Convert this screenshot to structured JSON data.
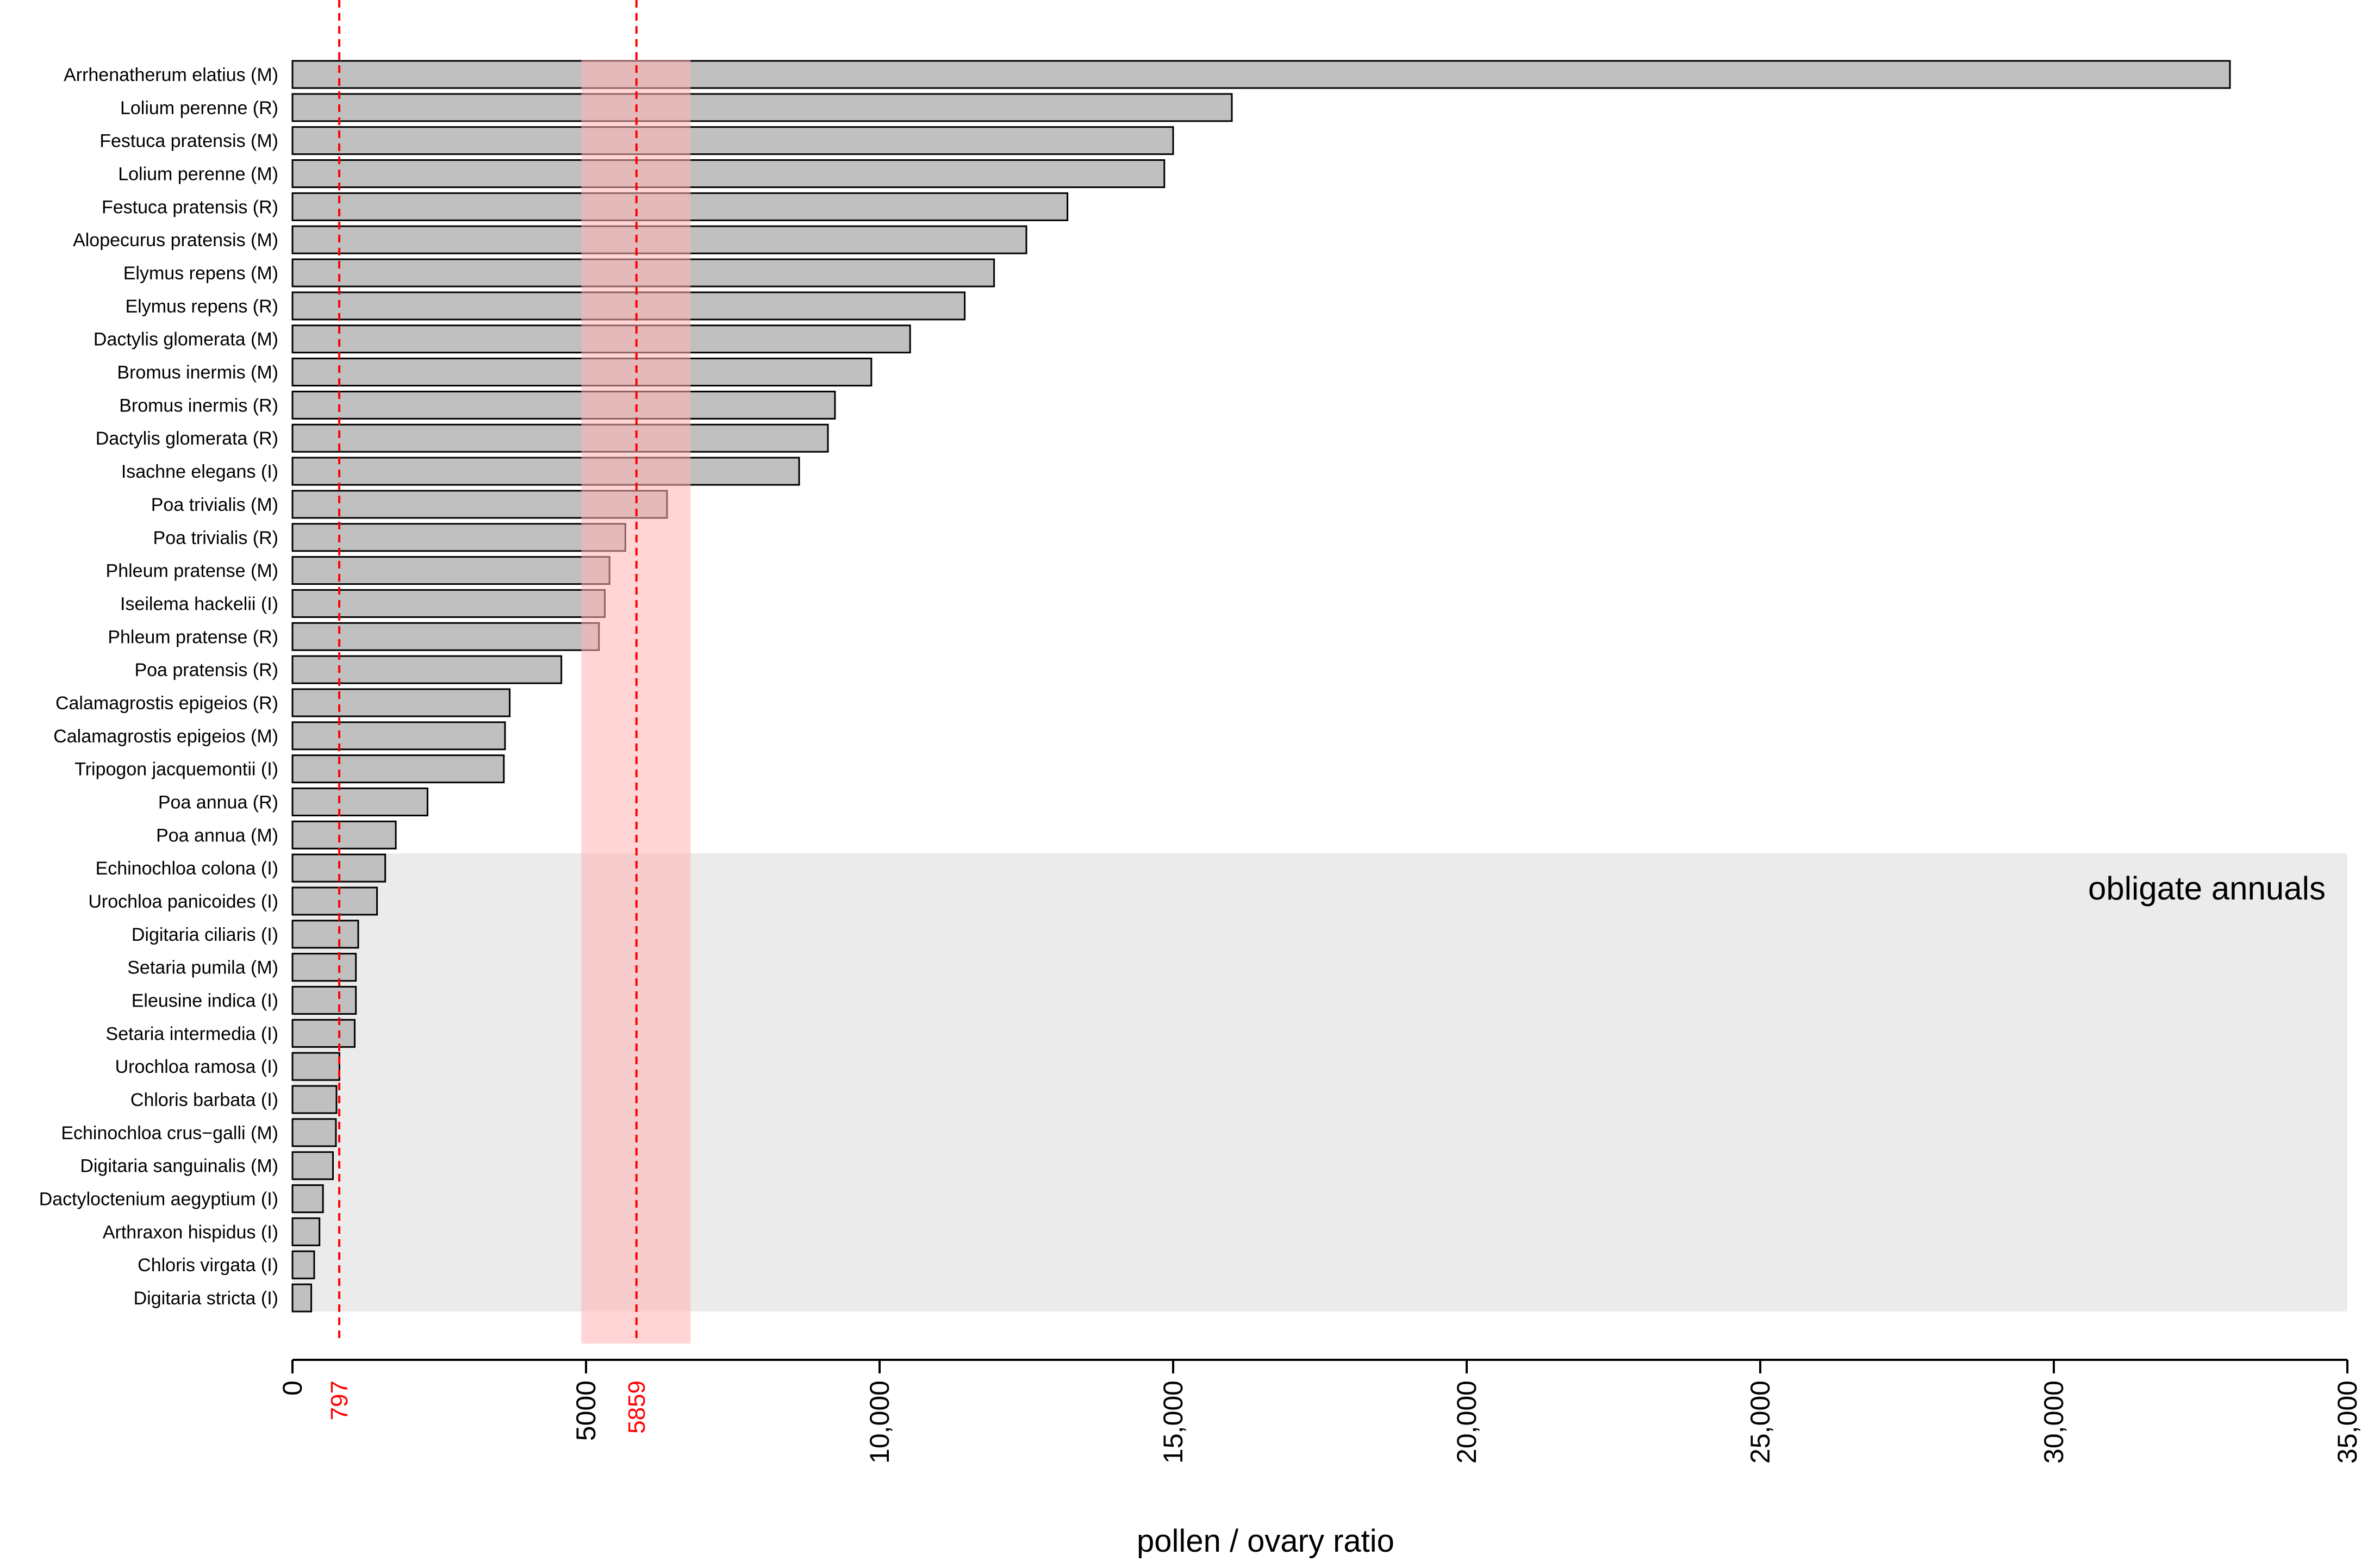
{
  "chart_data": {
    "type": "bar",
    "orientation": "horizontal",
    "title": "",
    "xlabel": "pollen / ovary ratio",
    "ylabel": "",
    "xlim": [
      0,
      35000
    ],
    "xticks": [
      0,
      5000,
      10000,
      15000,
      20000,
      25000,
      30000,
      35000
    ],
    "xtick_labels": [
      "0",
      "5000",
      "10,000",
      "15,000",
      "20,000",
      "25,000",
      "30,000",
      "35,000"
    ],
    "grid": false,
    "legend": "none",
    "bar_color": "#c0c0c0",
    "bar_edge_color": "#000000",
    "categories": [
      "Arrhenatherum elatius (M)",
      "Lolium perenne (R)",
      "Festuca pratensis (M)",
      "Lolium perenne (M)",
      "Festuca pratensis (R)",
      "Alopecurus pratensis (M)",
      "Elymus repens (M)",
      "Elymus repens (R)",
      "Dactylis glomerata (M)",
      "Bromus inermis (M)",
      "Bromus inermis (R)",
      "Dactylis glomerata (R)",
      "Isachne elegans (I)",
      "Poa trivialis (M)",
      "Poa trivialis (R)",
      "Phleum pratense (M)",
      "Iseilema hackelii (I)",
      "Phleum pratense (R)",
      "Poa pratensis (R)",
      "Calamagrostis epigeios (R)",
      "Calamagrostis epigeios (M)",
      "Tripogon jacquemontii (I)",
      "Poa annua (R)",
      "Poa annua (M)",
      "Echinochloa colona (I)",
      "Urochloa panicoides (I)",
      "Digitaria ciliaris (I)",
      "Setaria pumila (M)",
      "Eleusine indica (I)",
      "Setaria intermedia (I)",
      "Urochloa ramosa (I)",
      "Chloris barbata (I)",
      "Echinochloa crus−galli (M)",
      "Digitaria sanguinalis (M)",
      "Dactyloctenium aegyptium (I)",
      "Arthraxon hispidus (I)",
      "Chloris virgata (I)",
      "Digitaria stricta (I)"
    ],
    "values": [
      33000,
      16000,
      15000,
      14850,
      13200,
      12500,
      11950,
      11450,
      10520,
      9860,
      9240,
      9120,
      8630,
      6380,
      5670,
      5400,
      5320,
      5220,
      4580,
      3700,
      3620,
      3600,
      2300,
      1760,
      1580,
      1440,
      1120,
      1080,
      1080,
      1060,
      800,
      750,
      740,
      690,
      520,
      460,
      370,
      320
    ],
    "reference_lines": [
      {
        "value": 797,
        "label": "797",
        "color": "#ff0000",
        "style": "dashed"
      },
      {
        "value": 5859,
        "label": "5859",
        "color": "#ff0000",
        "style": "dashed"
      }
    ],
    "highlight_band": {
      "from": 4920,
      "to": 6780,
      "color": "#ffb3b3"
    },
    "grouping_band": {
      "label": "obligate annuals",
      "first_category": "Echinochloa colona (I)",
      "last_category": "Digitaria stricta (I)",
      "color": "#e0e0e0"
    }
  }
}
